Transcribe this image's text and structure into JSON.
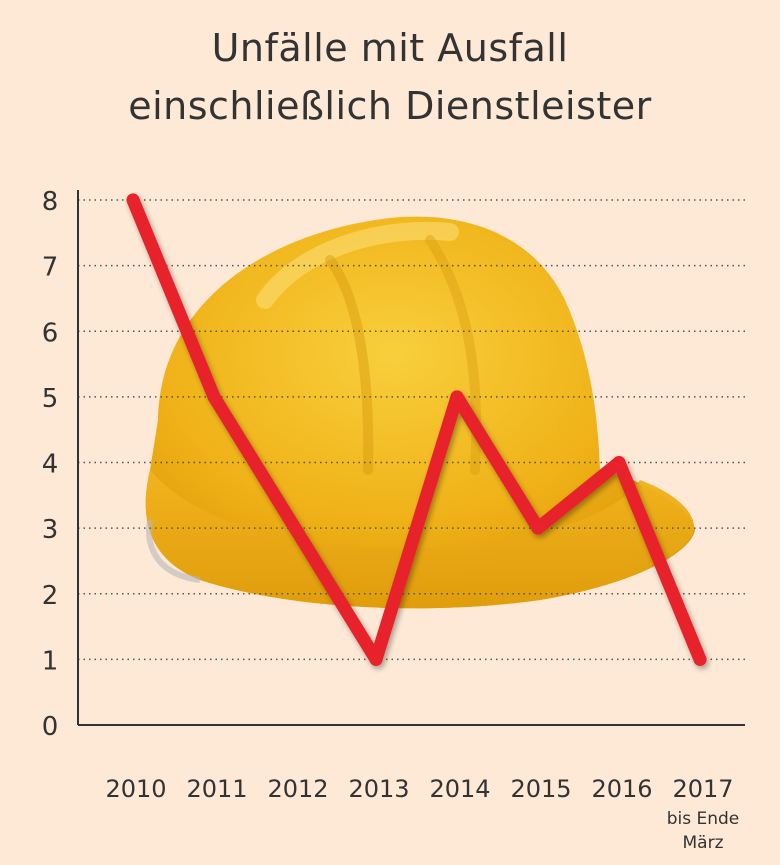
{
  "chart_data": {
    "type": "line",
    "title": [
      "Unfälle mit Ausfall",
      "einschließlich Dienstleister"
    ],
    "categories": [
      "2010",
      "2011",
      "2012",
      "2013",
      "2014",
      "2015",
      "2016",
      "2017"
    ],
    "category_note": {
      "index": 7,
      "lines": [
        "bis Ende",
        "März"
      ]
    },
    "values": [
      8,
      5,
      3,
      1,
      5,
      3,
      4,
      1
    ],
    "yticks": [
      0,
      1,
      2,
      3,
      4,
      5,
      6,
      7,
      8
    ],
    "ylim": [
      0,
      8
    ],
    "grid": "horizontal dotted",
    "background_image": "hard-hat",
    "colors": {
      "line": "#e8232b",
      "background": "#fde9d6",
      "helmet": "#f2b61c",
      "text": "#333333"
    }
  }
}
